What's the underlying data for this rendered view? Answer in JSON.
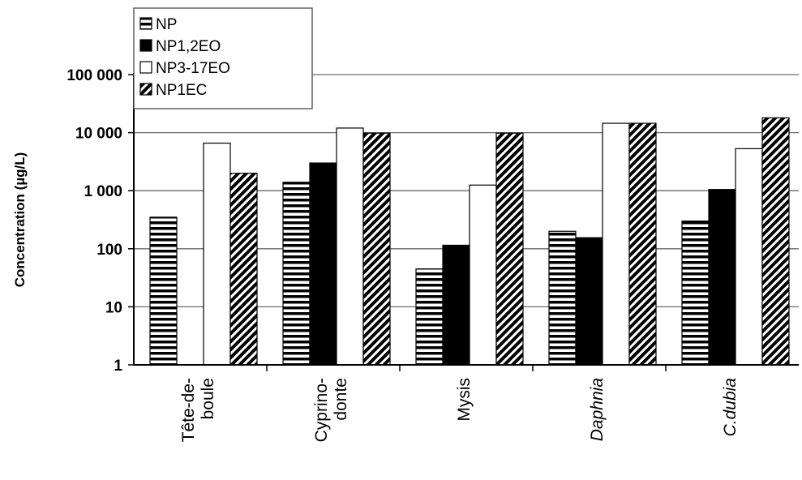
{
  "chart_data": {
    "type": "bar",
    "title": "",
    "xlabel": "",
    "ylabel": "Concentration (µg/L)",
    "yscale": "log",
    "ylim": [
      1,
      100000
    ],
    "yticks": [
      1,
      10,
      100,
      1000,
      10000,
      100000
    ],
    "ytick_labels": [
      "1",
      "10",
      "100",
      "1 000",
      "10 000",
      "100 000"
    ],
    "grid": "horizontal major lines",
    "legend_position": "top-left",
    "categories": [
      {
        "lines": [
          "Tête-de-",
          "boule"
        ],
        "italic": false
      },
      {
        "lines": [
          "Cyprino-",
          "donte"
        ],
        "italic": false
      },
      {
        "lines": [
          "Mysis"
        ],
        "italic": false
      },
      {
        "lines": [
          "Daphnia"
        ],
        "italic": true
      },
      {
        "lines": [
          "C.dubia"
        ],
        "italic": true
      }
    ],
    "series": [
      {
        "name": "NP",
        "pattern": "hstripe",
        "values": [
          350,
          1400,
          45,
          200,
          300
        ]
      },
      {
        "name": "NP1,2EO",
        "pattern": "solid",
        "values": [
          null,
          3000,
          115,
          155,
          1050
        ]
      },
      {
        "name": "NP3-17EO",
        "pattern": "white",
        "values": [
          6600,
          12000,
          1250,
          14500,
          5300
        ]
      },
      {
        "name": "NP1EC",
        "pattern": "diag",
        "values": [
          2000,
          9800,
          9800,
          14500,
          18000
        ]
      }
    ]
  }
}
